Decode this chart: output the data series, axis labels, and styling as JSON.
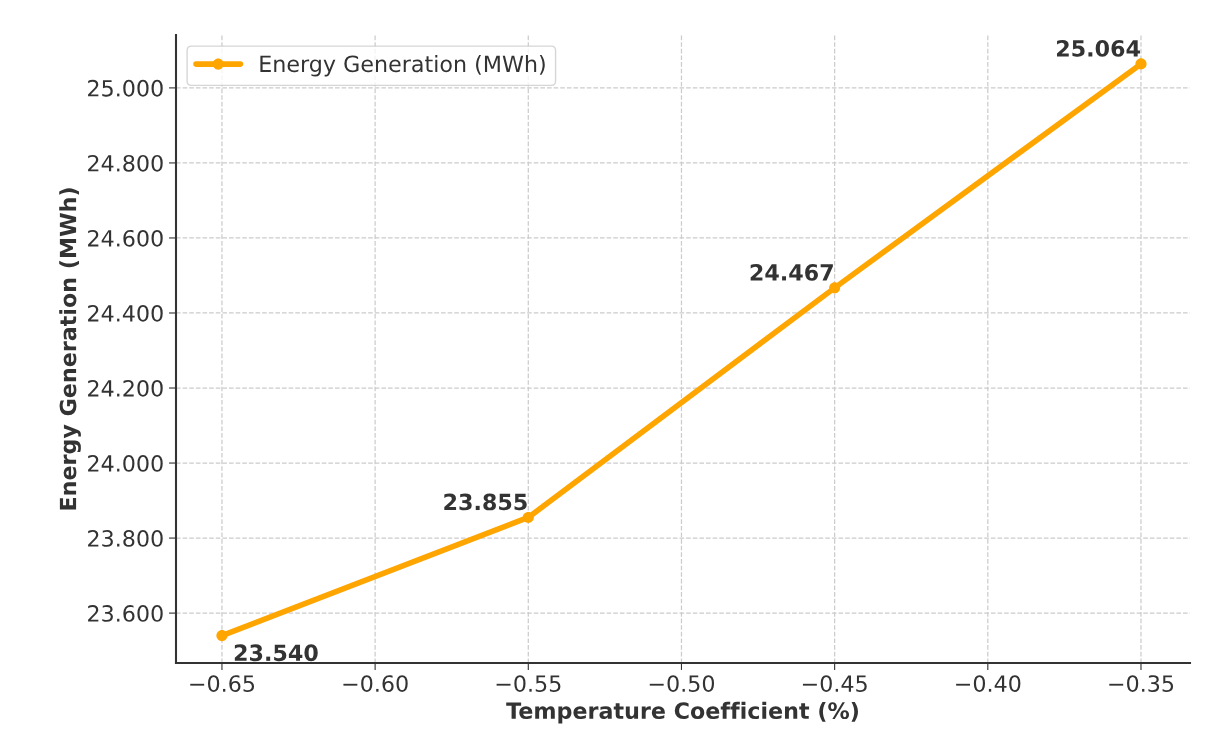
{
  "chart_data": {
    "type": "line",
    "xlabel": "Temperature Coefficient (%)",
    "ylabel": "Energy Generation (MWh)",
    "x": [
      -0.65,
      -0.55,
      -0.45,
      -0.35
    ],
    "series": [
      {
        "name": "Energy Generation (MWh)",
        "color": "#ffa500",
        "values": [
          23.54,
          23.855,
          24.467,
          25.064
        ],
        "value_labels": [
          "23.540",
          "23.855",
          "24.467",
          "25.064"
        ]
      }
    ],
    "xlim": [
      -0.665,
      -0.334
    ],
    "ylim": [
      23.467,
      25.141
    ],
    "xticks": [
      {
        "value": -0.65,
        "label": "−0.65"
      },
      {
        "value": -0.6,
        "label": "−0.60"
      },
      {
        "value": -0.55,
        "label": "−0.55"
      },
      {
        "value": -0.5,
        "label": "−0.50"
      },
      {
        "value": -0.45,
        "label": "−0.45"
      },
      {
        "value": -0.4,
        "label": "−0.40"
      },
      {
        "value": -0.35,
        "label": "−0.35"
      }
    ],
    "yticks": [
      {
        "value": 23.6,
        "label": "23.600"
      },
      {
        "value": 23.8,
        "label": "23.800"
      },
      {
        "value": 24.0,
        "label": "24.000"
      },
      {
        "value": 24.2,
        "label": "24.200"
      },
      {
        "value": 24.4,
        "label": "24.400"
      },
      {
        "value": 24.6,
        "label": "24.600"
      },
      {
        "value": 24.8,
        "label": "24.800"
      },
      {
        "value": 25.0,
        "label": "25.000"
      }
    ],
    "grid": true,
    "legend": "top left",
    "marker": "circle",
    "line_style": "solid"
  }
}
